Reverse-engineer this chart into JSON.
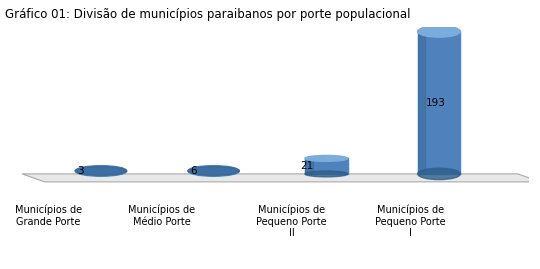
{
  "title": "Gráfico 01: Divisão de municípios paraibanos por porte populacional",
  "categories": [
    "Municípios de\nGrande Porte",
    "Municípios de\nMédio Porte",
    "Municípios de\nPequeno Porte\nII",
    "Municípios de\nPequeno Porte\nI"
  ],
  "values": [
    3,
    6,
    21,
    193
  ],
  "bar_color_body": "#4F81BD",
  "bar_color_top": "#7AADDB",
  "bar_color_shade": "#2D5F8A",
  "floor_color": "#E8E8E8",
  "floor_edge": "#AAAAAA",
  "background_color": "#FFFFFF",
  "border_color": "#CCCCCC",
  "label_fontsize": 7.0,
  "title_fontsize": 8.5,
  "value_fontsize": 7.5,
  "bar_width": 0.38,
  "ylim_max": 200,
  "floor_perspective": 0.18
}
